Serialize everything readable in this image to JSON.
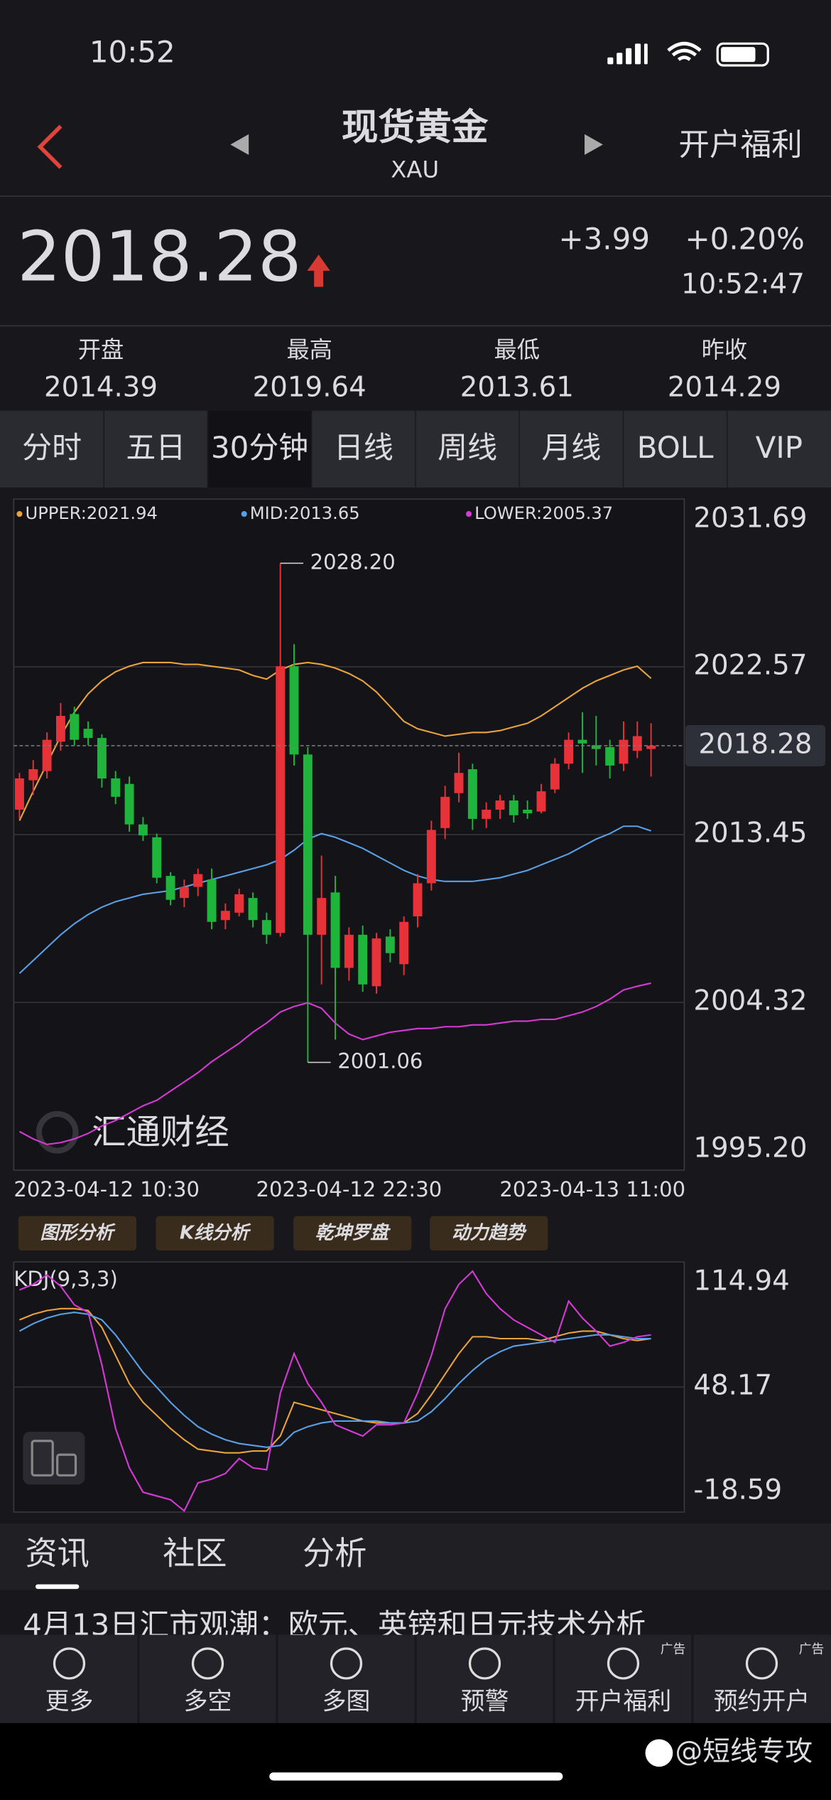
{
  "status_bar": {
    "time": "10:52"
  },
  "header": {
    "title": "现货黄金",
    "symbol": "XAU",
    "action": "开户福利"
  },
  "quote": {
    "price": 2018.28,
    "change": "+3.99",
    "change_pct": "+0.20%",
    "time": "10:52:47"
  },
  "stats": [
    {
      "label": "开盘",
      "value": 2014.39
    },
    {
      "label": "最高",
      "value": 2019.64
    },
    {
      "label": "最低",
      "value": 2013.61
    },
    {
      "label": "昨收",
      "value": 2014.29
    }
  ],
  "tabs": {
    "items": [
      "分时",
      "五日",
      "30分钟",
      "日线",
      "周线",
      "月线",
      "BOLL",
      "VIP"
    ],
    "active": 2
  },
  "chart_data": [
    {
      "type": "candlestick",
      "categories": [
        "2023-04-12 10:30",
        null,
        null,
        null,
        null,
        null,
        null,
        null,
        null,
        null,
        null,
        null,
        null,
        null,
        null,
        null,
        null,
        null,
        null,
        null,
        null,
        null,
        null,
        null,
        "2023-04-12 22:30",
        null,
        null,
        null,
        null,
        null,
        null,
        null,
        null,
        null,
        null,
        null,
        null,
        null,
        null,
        null,
        null,
        null,
        null,
        null,
        null,
        null,
        "2023-04-13 11:00"
      ],
      "open": [
        2014.8,
        2016.4,
        2016.9,
        2018.5,
        2020.0,
        2019.2,
        2018.7,
        2016.5,
        2016.2,
        2014.0,
        2013.3,
        2011.2,
        2010.0,
        2010.6,
        2011.0,
        2008.8,
        2009.2,
        2010.0,
        2008.8,
        2008.1,
        2022.6,
        2017.8,
        2008.0,
        2010.3,
        2006.2,
        2008.0,
        2005.2,
        2007.9,
        2006.4,
        2009.0,
        2010.8,
        2013.8,
        2015.7,
        2017.0,
        2014.3,
        2014.8,
        2015.3,
        2014.8,
        2014.7,
        2015.9,
        2017.3,
        2018.6,
        2018.3,
        2018.2,
        2017.3,
        2018.0,
        2018.1
      ],
      "high": [
        2016.8,
        2017.5,
        2019.0,
        2020.6,
        2020.4,
        2019.6,
        2018.9,
        2016.9,
        2016.6,
        2014.4,
        2013.5,
        2011.4,
        2011.0,
        2011.6,
        2011.6,
        2009.7,
        2010.5,
        2010.3,
        2009.2,
        2028.2,
        2023.8,
        2018.2,
        2012.3,
        2011.2,
        2008.4,
        2008.5,
        2008.1,
        2008.3,
        2009.0,
        2011.3,
        2014.2,
        2016.1,
        2017.9,
        2017.3,
        2015.2,
        2015.6,
        2015.6,
        2015.3,
        2016.2,
        2017.6,
        2019.0,
        2020.1,
        2019.9,
        2018.6,
        2019.6,
        2019.6,
        2019.5
      ],
      "low": [
        2014.3,
        2015.6,
        2016.5,
        2018.0,
        2018.3,
        2018.3,
        2016.0,
        2015.1,
        2013.6,
        2013.1,
        2010.8,
        2009.6,
        2009.5,
        2010.1,
        2008.3,
        2008.3,
        2009.0,
        2008.4,
        2007.5,
        2007.9,
        2017.2,
        2001.06,
        2005.3,
        2002.3,
        2005.5,
        2004.9,
        2004.8,
        2006.5,
        2005.8,
        2008.4,
        2010.4,
        2013.2,
        2015.2,
        2013.7,
        2013.8,
        2014.3,
        2014.1,
        2014.3,
        2014.6,
        2015.7,
        2017.0,
        2016.8,
        2017.2,
        2016.5,
        2016.9,
        2017.6,
        2016.6
      ],
      "close": [
        2016.5,
        2017.0,
        2018.6,
        2019.9,
        2018.6,
        2018.7,
        2016.5,
        2015.5,
        2014.0,
        2013.4,
        2011.1,
        2009.9,
        2010.6,
        2011.3,
        2008.7,
        2009.3,
        2010.2,
        2008.8,
        2008.0,
        2022.6,
        2017.8,
        2008.0,
        2010.0,
        2006.2,
        2008.0,
        2005.3,
        2007.8,
        2007.0,
        2008.7,
        2010.8,
        2013.7,
        2015.5,
        2016.8,
        2014.3,
        2014.8,
        2015.3,
        2014.5,
        2014.6,
        2015.8,
        2017.3,
        2018.6,
        2018.4,
        2018.1,
        2017.2,
        2018.6,
        2018.8,
        2018.28
      ],
      "up_color": "#e8323a",
      "down_color": "#1fb53c",
      "series": [
        {
          "name": "UPPER:2021.94",
          "color": "#e8a33c",
          "values": [
            2014.2,
            2015.8,
            2017.3,
            2018.8,
            2020.1,
            2021.1,
            2021.8,
            2022.3,
            2022.6,
            2022.8,
            2022.8,
            2022.8,
            2022.7,
            2022.7,
            2022.6,
            2022.5,
            2022.4,
            2022.1,
            2021.9,
            2022.4,
            2022.7,
            2022.8,
            2022.7,
            2022.5,
            2022.2,
            2021.8,
            2021.2,
            2020.4,
            2019.6,
            2019.2,
            2019.0,
            2018.8,
            2018.9,
            2019.0,
            2019.0,
            2019.1,
            2019.3,
            2019.5,
            2019.9,
            2020.4,
            2020.9,
            2021.4,
            2021.8,
            2022.1,
            2022.4,
            2022.6,
            2021.94
          ]
        },
        {
          "name": "MID:2013.65",
          "color": "#5aa0e6",
          "values": [
            2005.9,
            2006.6,
            2007.3,
            2008.0,
            2008.6,
            2009.1,
            2009.5,
            2009.8,
            2010.0,
            2010.2,
            2010.3,
            2010.4,
            2010.6,
            2010.8,
            2011.0,
            2011.2,
            2011.4,
            2011.6,
            2011.8,
            2012.1,
            2012.6,
            2013.2,
            2013.5,
            2013.3,
            2013.0,
            2012.7,
            2012.3,
            2011.9,
            2011.5,
            2011.2,
            2011.0,
            2010.9,
            2010.9,
            2010.9,
            2011.0,
            2011.1,
            2011.3,
            2011.5,
            2011.8,
            2012.1,
            2012.4,
            2012.8,
            2013.2,
            2013.5,
            2013.9,
            2013.9,
            2013.65
          ]
        },
        {
          "name": "LOWER:2005.37",
          "color": "#d63ad6",
          "values": [
            1997.3,
            1996.9,
            1996.6,
            1996.7,
            1996.9,
            1997.2,
            1997.6,
            1997.9,
            1998.3,
            1998.7,
            1999.0,
            1999.5,
            2000.0,
            2000.5,
            2001.1,
            2001.6,
            2002.1,
            2002.7,
            2003.2,
            2003.8,
            2004.1,
            2004.3,
            2004.0,
            2003.2,
            2002.6,
            2002.3,
            2002.5,
            2002.7,
            2002.8,
            2002.9,
            2002.9,
            2003.0,
            2003.0,
            2003.1,
            2003.1,
            2003.2,
            2003.3,
            2003.3,
            2003.4,
            2003.4,
            2003.6,
            2003.8,
            2004.1,
            2004.5,
            2005.0,
            2005.2,
            2005.37
          ]
        }
      ],
      "ylim": [
        1995.2,
        2031.69
      ],
      "yticks": [
        2031.69,
        2022.57,
        2013.45,
        2004.32,
        {
          "value": 1995.2,
          "label": "1995.20"
        }
      ],
      "grid": true,
      "last_price": 2018.28,
      "annotations": [
        {
          "label": "2028.20",
          "value": 2028.2
        },
        {
          "label": "2001.06",
          "value": 2001.06
        }
      ]
    },
    {
      "type": "line",
      "title": "KDJ(9,3,3)",
      "series": [
        {
          "color": "#e8a33c",
          "values": [
            84,
            87,
            89,
            90,
            90,
            89,
            80,
            65,
            50,
            40,
            33,
            26,
            20,
            15,
            14,
            13,
            13,
            14,
            14,
            22,
            40,
            38,
            36,
            34,
            32,
            30,
            29,
            29,
            29,
            34,
            44,
            55,
            66,
            75,
            75,
            74,
            74,
            74,
            73,
            75,
            77,
            78,
            78,
            76,
            74,
            73,
            74
          ]
        },
        {
          "color": "#5aa0e6",
          "values": [
            78,
            82,
            85,
            87,
            88,
            87,
            84,
            76,
            66,
            56,
            48,
            40,
            33,
            27,
            23,
            20,
            18,
            17,
            16,
            17,
            24,
            27,
            29,
            30,
            30,
            30,
            30,
            29,
            29,
            30,
            35,
            42,
            50,
            57,
            63,
            67,
            70,
            71,
            72,
            73,
            74,
            75,
            76,
            76,
            75,
            74,
            74
          ]
        },
        {
          "color": "#d63ad6",
          "values": [
            100,
            103,
            108,
            102,
            92,
            88,
            60,
            26,
            5,
            -8,
            -10,
            -12,
            -18,
            -3,
            -1,
            2,
            10,
            5,
            4,
            45,
            66,
            50,
            40,
            28,
            25,
            22,
            28,
            28,
            29,
            45,
            65,
            90,
            103,
            110,
            98,
            90,
            84,
            80,
            76,
            72,
            94,
            85,
            78,
            70,
            72,
            75,
            76
          ]
        }
      ],
      "ylim": [
        -18.59,
        114.94
      ],
      "yticks": [
        114.94,
        48.17,
        -18.59
      ],
      "grid": true
    }
  ],
  "tools": [
    "图形分析",
    "K线分析",
    "乾坤罗盘",
    "动力趋势"
  ],
  "watermark": "汇通财经",
  "section_tabs": {
    "items": [
      "资讯",
      "社区",
      "分析"
    ],
    "active": 0
  },
  "news": {
    "headline": "4月13日汇市观潮：欧元、英镑和日元技术分析"
  },
  "nav": [
    {
      "label": "更多"
    },
    {
      "label": "多空"
    },
    {
      "label": "多图"
    },
    {
      "label": "预警"
    },
    {
      "label": "开户福利",
      "badge": "广告"
    },
    {
      "label": "预约开户",
      "badge": "广告"
    }
  ],
  "footer": {
    "credit": "@短线专攻"
  }
}
